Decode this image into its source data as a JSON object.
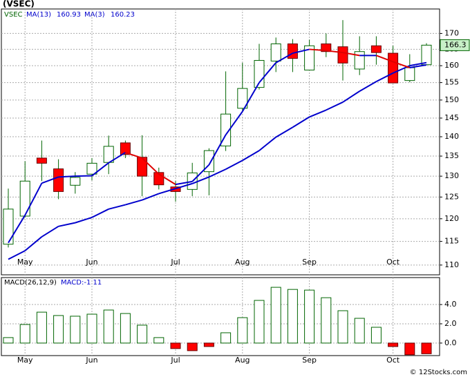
{
  "chart_data": [
    {
      "type": "candlestick",
      "title": "(VSEC)",
      "symbol": "VSEC",
      "categories": [
        null,
        "May",
        null,
        null,
        null,
        "Jun",
        null,
        null,
        null,
        null,
        "Jul",
        null,
        null,
        null,
        "Aug",
        null,
        null,
        null,
        "Sep",
        null,
        null,
        null,
        null,
        "Oct",
        null,
        null
      ],
      "open": [
        114.4,
        120.6,
        134.5,
        131.8,
        127.8,
        130.5,
        133.4,
        138.4,
        134.7,
        130.9,
        127.4,
        126.8,
        131.1,
        137.6,
        147.7,
        153.6,
        161.4,
        166.7,
        158.7,
        166.7,
        165.8,
        159.0,
        166.1,
        163.8,
        155.6,
        160.3
      ],
      "high": [
        127,
        133.7,
        139.0,
        134.2,
        131,
        134.5,
        140.3,
        139,
        140.4,
        132.1,
        128.8,
        133.3,
        137,
        158.3,
        160.9,
        166.7,
        168.7,
        168.2,
        168,
        170,
        174.3,
        169.1,
        169.1,
        166.1,
        163.5,
        166.9
      ],
      "low": [
        113.7,
        120.3,
        128.8,
        124.5,
        125.8,
        129,
        130.5,
        134.5,
        125.2,
        126.8,
        123.9,
        125.2,
        125.4,
        136.3,
        147.0,
        153.0,
        158.1,
        158.1,
        158.7,
        162.6,
        155.6,
        157.2,
        160.3,
        154.9,
        155.1,
        160.3
      ],
      "close": [
        122.2,
        128.8,
        133.2,
        126.3,
        129.7,
        133.2,
        137.5,
        135.4,
        130.0,
        127.9,
        126.3,
        130.8,
        136.4,
        146.1,
        153.3,
        161.6,
        166.7,
        162.2,
        166.1,
        164.3,
        160.8,
        164.3,
        164.0,
        154.9,
        159.4,
        166.3
      ],
      "up_color": "#006400",
      "down_color": "#ff0000",
      "price_box_color": "#c8f0c8",
      "series": [
        {
          "name": "MA(13)",
          "color": "#0000cc",
          "values": [
            111.2,
            113.0,
            116.0,
            118.3,
            119.1,
            120.3,
            122.2,
            123.2,
            124.3,
            125.8,
            127.0,
            128.2,
            129.8,
            131.7,
            133.9,
            136.4,
            139.9,
            142.5,
            145.3,
            147.2,
            149.4,
            152.5,
            155.3,
            157.8,
            160.0,
            160.93
          ]
        },
        {
          "name": "MA(3)",
          "color": "#0000cc",
          "down_color": "#dd0000",
          "values": [
            114.7,
            120.8,
            128.3,
            129.8,
            130.0,
            130.1,
            133.3,
            135.9,
            134.5,
            130.5,
            128.0,
            128.7,
            132.8,
            140.5,
            146.8,
            155.0,
            160.9,
            163.8,
            165.0,
            164.6,
            164.0,
            163.1,
            163.1,
            161.2,
            159.4,
            160.23
          ]
        }
      ],
      "log_scale": true,
      "ylim": [
        108,
        178
      ],
      "yticks": [
        110,
        115,
        120,
        125,
        130,
        135,
        140,
        145,
        150,
        155,
        160,
        165,
        170
      ],
      "grid": true
    },
    {
      "type": "bar",
      "series": [
        {
          "name": "MACD(26,12,9)",
          "label": "MACD:-1.11",
          "color": "#006400",
          "down_color": "#ff0000",
          "values": [
            0.57,
            1.93,
            3.21,
            2.86,
            2.79,
            3.0,
            3.43,
            3.07,
            1.86,
            0.57,
            -0.57,
            -0.79,
            -0.36,
            1.07,
            2.64,
            4.43,
            5.79,
            5.57,
            5.5,
            4.71,
            3.36,
            2.57,
            1.64,
            -0.36,
            -1.21,
            -1.11
          ]
        }
      ],
      "ylim": [
        -1.3,
        6.8
      ],
      "yticks": [
        {
          "value": 0,
          "label": "0.0"
        },
        {
          "value": 2,
          "label": "2.0"
        },
        {
          "value": 4,
          "label": "4.0"
        }
      ],
      "grid": true
    }
  ],
  "watermark": "© 12Stocks.com"
}
